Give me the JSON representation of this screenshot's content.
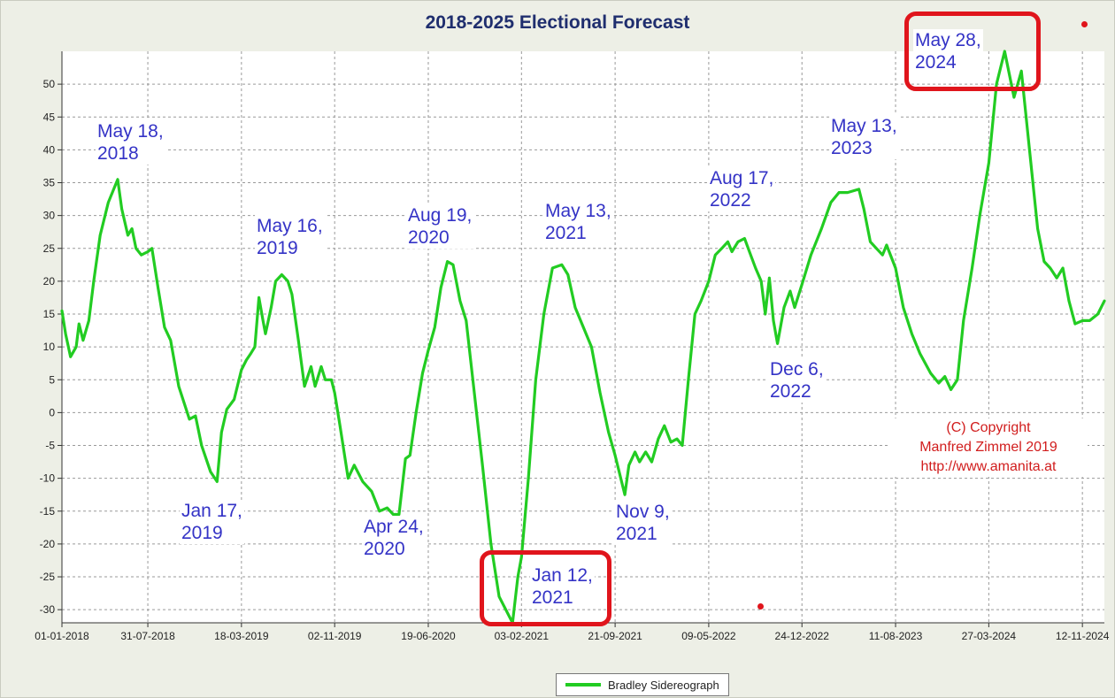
{
  "chart_data": {
    "type": "line",
    "title": "2018-2025 Electional Forecast",
    "xlabel": "",
    "ylabel": "",
    "ylim": [
      -32,
      55
    ],
    "xlim": [
      "2018-01-01",
      "2025-01-05"
    ],
    "grid": true,
    "yticks": [
      "-30",
      "-25",
      "-20",
      "-15",
      "-10",
      "-5",
      "0",
      "5",
      "10",
      "15",
      "20",
      "25",
      "30",
      "35",
      "40",
      "45",
      "50"
    ],
    "xticks": [
      "01-01-2018",
      "31-07-2018",
      "18-03-2019",
      "02-11-2019",
      "19-06-2020",
      "03-02-2021",
      "21-09-2021",
      "09-05-2022",
      "24-12-2022",
      "11-08-2023",
      "27-03-2024",
      "12-11-2024"
    ],
    "legend": {
      "position": "bottom-center",
      "entries": [
        "Bradley Sidereograph"
      ]
    },
    "series": [
      {
        "name": "Bradley Sidereograph",
        "color": "#22cc22",
        "points": [
          [
            "2018-01-01",
            15.5
          ],
          [
            "2018-01-10",
            12
          ],
          [
            "2018-01-22",
            8.5
          ],
          [
            "2018-02-05",
            10
          ],
          [
            "2018-02-12",
            13.5
          ],
          [
            "2018-02-22",
            11
          ],
          [
            "2018-03-08",
            14
          ],
          [
            "2018-03-20",
            20
          ],
          [
            "2018-04-05",
            27
          ],
          [
            "2018-04-25",
            32
          ],
          [
            "2018-05-18",
            35.5
          ],
          [
            "2018-05-28",
            31
          ],
          [
            "2018-06-12",
            27
          ],
          [
            "2018-06-22",
            28
          ],
          [
            "2018-07-02",
            25
          ],
          [
            "2018-07-15",
            24
          ],
          [
            "2018-07-31",
            24.5
          ],
          [
            "2018-08-10",
            25
          ],
          [
            "2018-08-25",
            19
          ],
          [
            "2018-09-10",
            13
          ],
          [
            "2018-09-25",
            11
          ],
          [
            "2018-10-15",
            4
          ],
          [
            "2018-11-10",
            -1
          ],
          [
            "2018-11-25",
            -0.5
          ],
          [
            "2018-12-10",
            -5
          ],
          [
            "2019-01-01",
            -9
          ],
          [
            "2019-01-17",
            -10.5
          ],
          [
            "2019-01-28",
            -3
          ],
          [
            "2019-02-10",
            0.5
          ],
          [
            "2019-02-28",
            2
          ],
          [
            "2019-03-18",
            6.5
          ],
          [
            "2019-03-30",
            8
          ],
          [
            "2019-04-10",
            9
          ],
          [
            "2019-04-20",
            10
          ],
          [
            "2019-04-30",
            17.5
          ],
          [
            "2019-05-10",
            14
          ],
          [
            "2019-05-16",
            12
          ],
          [
            "2019-05-30",
            16
          ],
          [
            "2019-06-10",
            20
          ],
          [
            "2019-06-25",
            21
          ],
          [
            "2019-07-10",
            20
          ],
          [
            "2019-07-20",
            18
          ],
          [
            "2019-08-05",
            11
          ],
          [
            "2019-08-20",
            4
          ],
          [
            "2019-09-05",
            7
          ],
          [
            "2019-09-15",
            4
          ],
          [
            "2019-09-30",
            7
          ],
          [
            "2019-10-10",
            5
          ],
          [
            "2019-10-25",
            5
          ],
          [
            "2019-11-02",
            3
          ],
          [
            "2019-11-15",
            -2
          ],
          [
            "2019-12-05",
            -10
          ],
          [
            "2019-12-20",
            -8
          ],
          [
            "2020-01-10",
            -10.5
          ],
          [
            "2020-02-01",
            -12
          ],
          [
            "2020-02-20",
            -15
          ],
          [
            "2020-03-10",
            -14.5
          ],
          [
            "2020-03-25",
            -15.5
          ],
          [
            "2020-04-08",
            -15.5
          ],
          [
            "2020-04-24",
            -7
          ],
          [
            "2020-05-05",
            -6.5
          ],
          [
            "2020-05-20",
            0
          ],
          [
            "2020-06-05",
            6
          ],
          [
            "2020-06-19",
            9.5
          ],
          [
            "2020-07-05",
            13
          ],
          [
            "2020-07-20",
            19
          ],
          [
            "2020-08-05",
            23
          ],
          [
            "2020-08-19",
            22.5
          ],
          [
            "2020-09-05",
            17
          ],
          [
            "2020-09-20",
            14
          ],
          [
            "2020-10-10",
            3
          ],
          [
            "2020-10-30",
            -8
          ],
          [
            "2020-11-20",
            -20
          ],
          [
            "2020-12-10",
            -28
          ],
          [
            "2021-01-12",
            -32
          ],
          [
            "2021-01-25",
            -25
          ],
          [
            "2021-02-03",
            -22
          ],
          [
            "2021-02-20",
            -10
          ],
          [
            "2021-03-10",
            5
          ],
          [
            "2021-03-30",
            15
          ],
          [
            "2021-04-20",
            22
          ],
          [
            "2021-05-13",
            22.5
          ],
          [
            "2021-05-28",
            21
          ],
          [
            "2021-06-15",
            16
          ],
          [
            "2021-07-05",
            13
          ],
          [
            "2021-07-25",
            10
          ],
          [
            "2021-08-15",
            3
          ],
          [
            "2021-09-05",
            -3
          ],
          [
            "2021-09-21",
            -6.5
          ],
          [
            "2021-10-05",
            -10
          ],
          [
            "2021-10-15",
            -12.5
          ],
          [
            "2021-10-25",
            -8
          ],
          [
            "2021-11-09",
            -6
          ],
          [
            "2021-11-20",
            -7.5
          ],
          [
            "2021-12-05",
            -6
          ],
          [
            "2021-12-20",
            -7.5
          ],
          [
            "2022-01-05",
            -4
          ],
          [
            "2022-01-20",
            -2
          ],
          [
            "2022-02-05",
            -4.5
          ],
          [
            "2022-02-20",
            -4
          ],
          [
            "2022-03-05",
            -5
          ],
          [
            "2022-03-20",
            5
          ],
          [
            "2022-04-05",
            15
          ],
          [
            "2022-04-20",
            17
          ],
          [
            "2022-05-09",
            20
          ],
          [
            "2022-05-25",
            24
          ],
          [
            "2022-06-10",
            25
          ],
          [
            "2022-06-25",
            26
          ],
          [
            "2022-07-05",
            24.5
          ],
          [
            "2022-07-20",
            26
          ],
          [
            "2022-08-05",
            26.5
          ],
          [
            "2022-08-17",
            24.5
          ],
          [
            "2022-09-01",
            22
          ],
          [
            "2022-09-15",
            20
          ],
          [
            "2022-09-25",
            15
          ],
          [
            "2022-10-05",
            20.5
          ],
          [
            "2022-10-15",
            14
          ],
          [
            "2022-10-25",
            10.5
          ],
          [
            "2022-11-10",
            16
          ],
          [
            "2022-11-25",
            18.5
          ],
          [
            "2022-12-06",
            16
          ],
          [
            "2022-12-24",
            19.5
          ],
          [
            "2023-01-15",
            24
          ],
          [
            "2023-02-10",
            28
          ],
          [
            "2023-03-05",
            32
          ],
          [
            "2023-03-25",
            33.5
          ],
          [
            "2023-04-15",
            33.5
          ],
          [
            "2023-05-13",
            34
          ],
          [
            "2023-05-25",
            31
          ],
          [
            "2023-06-10",
            26
          ],
          [
            "2023-06-25",
            25
          ],
          [
            "2023-07-10",
            24
          ],
          [
            "2023-07-20",
            25.5
          ],
          [
            "2023-08-11",
            22
          ],
          [
            "2023-08-30",
            16
          ],
          [
            "2023-09-20",
            12
          ],
          [
            "2023-10-10",
            9
          ],
          [
            "2023-11-05",
            6
          ],
          [
            "2023-11-25",
            4.5
          ],
          [
            "2023-12-10",
            5.5
          ],
          [
            "2023-12-25",
            3.5
          ],
          [
            "2024-01-10",
            5
          ],
          [
            "2024-01-25",
            14
          ],
          [
            "2024-02-15",
            22
          ],
          [
            "2024-03-05",
            30
          ],
          [
            "2024-03-27",
            38
          ],
          [
            "2024-04-15",
            50
          ],
          [
            "2024-05-05",
            55
          ],
          [
            "2024-05-28",
            48
          ],
          [
            "2024-06-15",
            52
          ],
          [
            "2024-07-05",
            40
          ],
          [
            "2024-07-25",
            28
          ],
          [
            "2024-08-10",
            23
          ],
          [
            "2024-08-25",
            22
          ],
          [
            "2024-09-10",
            20.5
          ],
          [
            "2024-09-25",
            22
          ],
          [
            "2024-10-10",
            17
          ],
          [
            "2024-10-25",
            13.5
          ],
          [
            "2024-11-12",
            14
          ],
          [
            "2024-11-30",
            14
          ],
          [
            "2024-12-20",
            15
          ],
          [
            "2025-01-05",
            17
          ]
        ]
      }
    ],
    "annotations": [
      {
        "text": "May 18,\n2018",
        "x": "2018-05-18",
        "y": 35.5
      },
      {
        "text": "Jan 17,\n2019",
        "x": "2019-01-17",
        "y": -10.5
      },
      {
        "text": "May 16,\n2019",
        "x": "2019-05-16",
        "y": 21
      },
      {
        "text": "Apr 24,\n2020",
        "x": "2020-04-24",
        "y": -15.5
      },
      {
        "text": "Aug 19,\n2020",
        "x": "2020-08-19",
        "y": 23
      },
      {
        "text": "Jan 12,\n2021",
        "x": "2021-01-12",
        "y": -32
      },
      {
        "text": "May 13,\n2021",
        "x": "2021-05-13",
        "y": 22.5
      },
      {
        "text": "Nov 9,\n2021",
        "x": "2021-11-09",
        "y": -12.5
      },
      {
        "text": "Aug 17,\n2022",
        "x": "2022-08-17",
        "y": 27
      },
      {
        "text": "Dec 6,\n2022",
        "x": "2022-12-06",
        "y": 10.5
      },
      {
        "text": "May 13,\n2023",
        "x": "2023-05-13",
        "y": 34
      },
      {
        "text": "May 28,\n2024",
        "x": "2024-05-28",
        "y": 55
      }
    ],
    "copyright": {
      "line1": "(C) Copyright",
      "line2": "Manfred Zimmel  2019",
      "line3": "http://www.amanita.at"
    },
    "colors": {
      "line": "#22cc22",
      "annotation": "#3433c6",
      "highlight_box": "#e0151c",
      "title": "#1f2e6e"
    }
  }
}
